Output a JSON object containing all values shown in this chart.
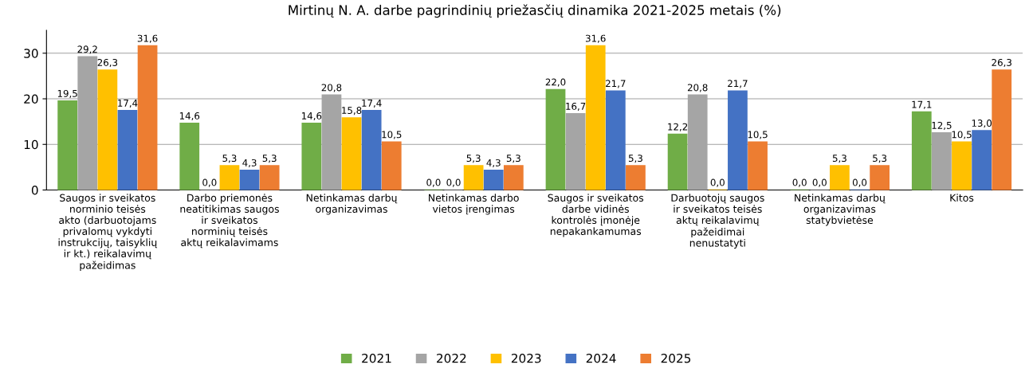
{
  "chart_data": {
    "type": "bar",
    "title": "Mirtinų N. A. darbe pagrindinių priežasčių dinamika 2021-2025 metais (%)",
    "categories": [
      "Saugos ir sveikatos\nnorminio teisės\nakto (darbuotojams\nprivalomų vykdyti\ninstrukcijų, taisyklių\nir kt.) reikalavimų\npažeidimas",
      "Darbo priemonės\nneatitikimas saugos\nir sveikatos\nnorminių teisės\naktų reikalavimams",
      "Netinkamas darbų\norganizavimas",
      "Netinkamas darbo\nvietos įrengimas",
      "Saugos ir sveikatos\ndarbe vidinės\nkontrolės įmonėje\nnepakankamumas",
      "Darbuotojų saugos\nir sveikatos teisės\naktų reikalavimų\npažeidimai\nnenustatyti",
      "Netinkamas darbų\norganizavimas\nstatybvietėse",
      "Kitos"
    ],
    "series": [
      {
        "name": "2021",
        "color": "#70ad47",
        "values": [
          19.5,
          14.6,
          14.6,
          0.0,
          22.0,
          12.2,
          0.0,
          17.1
        ],
        "value_labels": [
          "19,5",
          "14,6",
          "14,6",
          "0,0",
          "22,0",
          "12,2",
          "0,0",
          "17,1"
        ]
      },
      {
        "name": "2022",
        "color": "#a5a5a5",
        "values": [
          29.2,
          0.0,
          20.8,
          0.0,
          16.7,
          20.8,
          0.0,
          12.5
        ],
        "value_labels": [
          "29,2",
          "0,0",
          "20,8",
          "0,0",
          "16,7",
          "20,8",
          "0,0",
          "12,5"
        ]
      },
      {
        "name": "2023",
        "color": "#ffc000",
        "values": [
          26.3,
          5.3,
          15.8,
          5.3,
          31.6,
          0.0,
          5.3,
          10.5
        ],
        "value_labels": [
          "26,3",
          "5,3",
          "15,8",
          "5,3",
          "31,6",
          "0,0",
          "5,3",
          "10,5"
        ]
      },
      {
        "name": "2024",
        "color": "#4472c4",
        "values": [
          17.4,
          4.3,
          17.4,
          4.3,
          21.7,
          21.7,
          0.0,
          13.0
        ],
        "value_labels": [
          "17,4",
          "4,3",
          "17,4",
          "4,3",
          "21,7",
          "21,7",
          "0,0",
          "13,0"
        ]
      },
      {
        "name": "2025",
        "color": "#ed7d31",
        "values": [
          31.6,
          5.3,
          10.5,
          5.3,
          5.3,
          10.5,
          5.3,
          26.3
        ],
        "value_labels": [
          "31,6",
          "5,3",
          "10,5",
          "5,3",
          "5,3",
          "10,5",
          "5,3",
          "26,3"
        ]
      }
    ],
    "ylim": [
      0,
      35
    ],
    "yticks": [
      0,
      10,
      20,
      30
    ],
    "grid": "y",
    "legend": "bottom"
  }
}
